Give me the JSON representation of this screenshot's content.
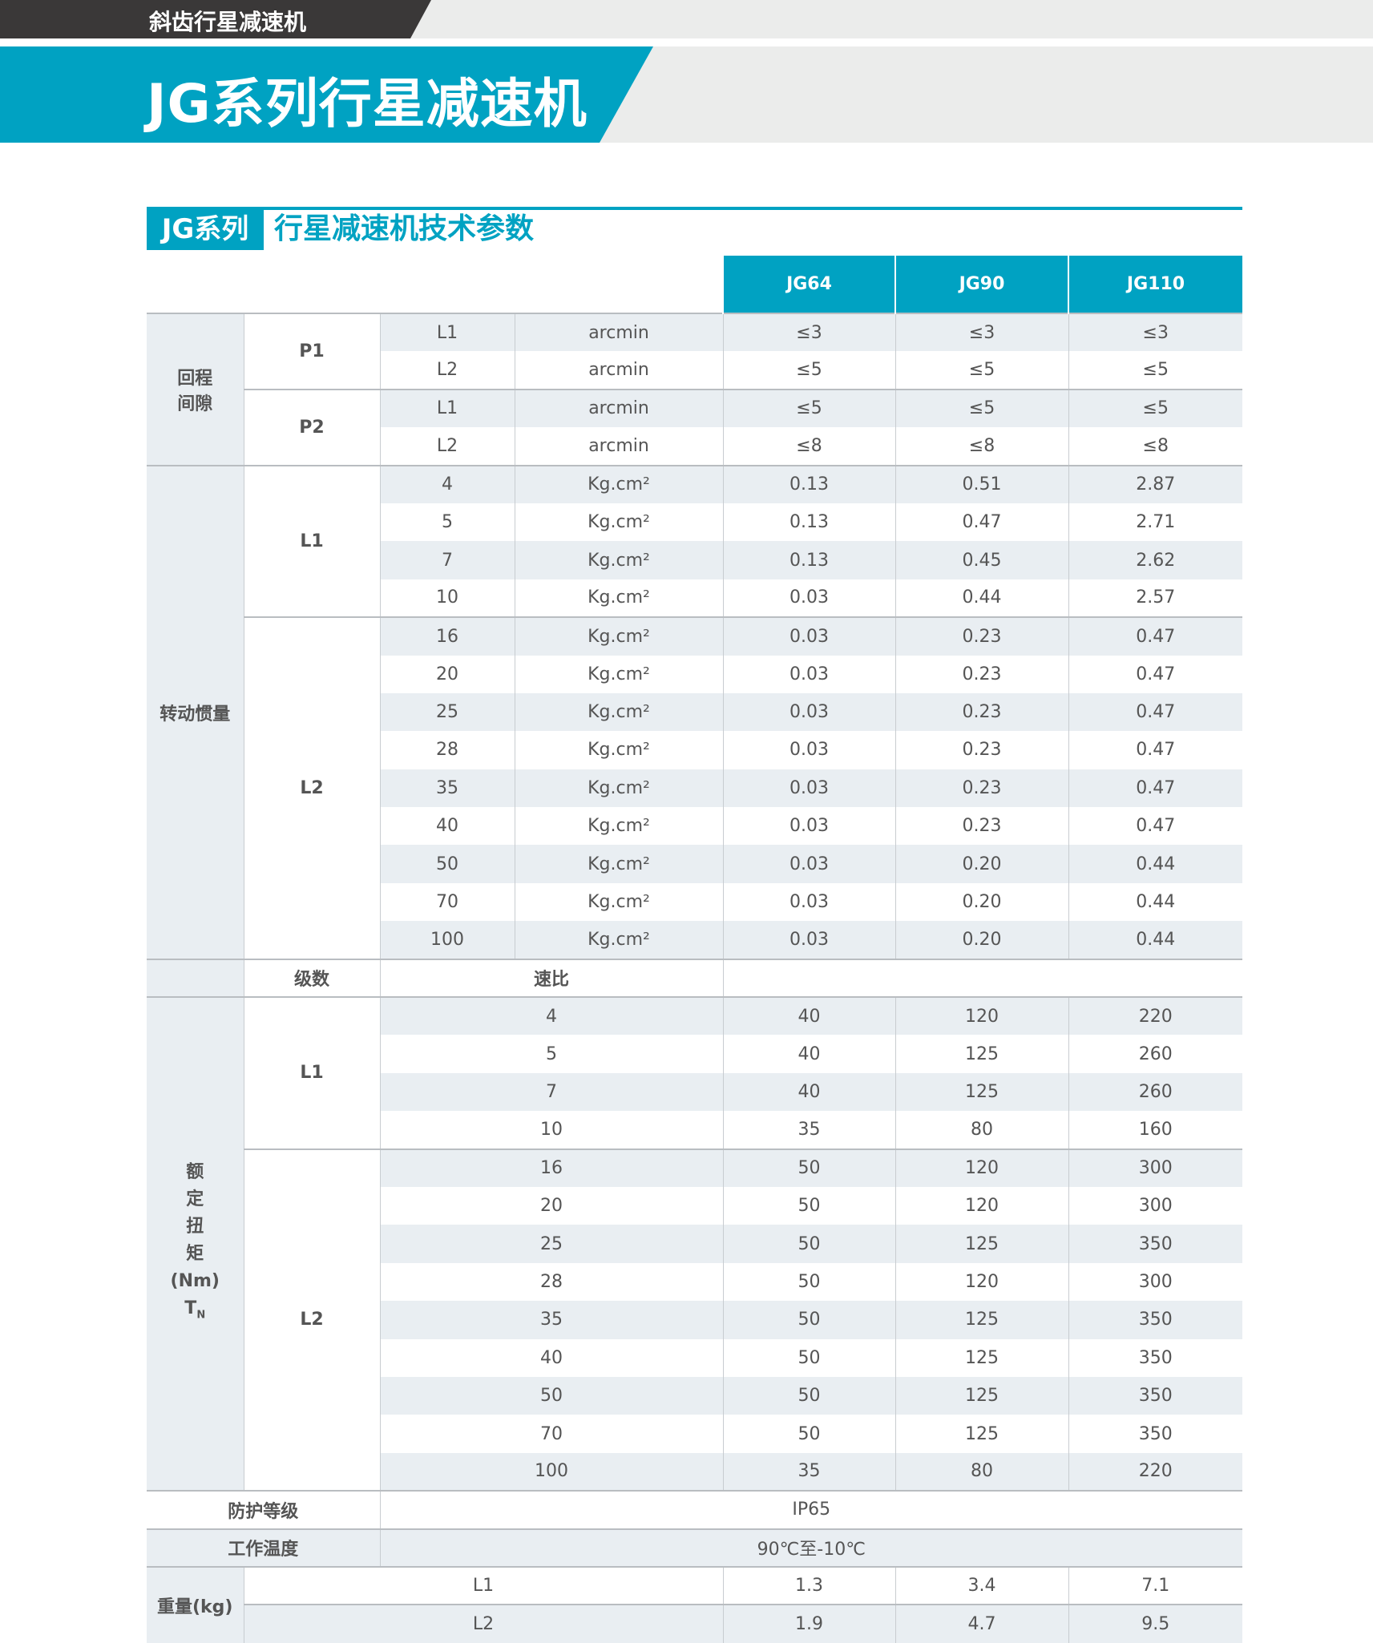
{
  "banner": {
    "category": "斜齿行星减速机",
    "title": "JG系列行星减速机"
  },
  "section": {
    "label": "JG系列",
    "title": "行星减速机技术参数"
  },
  "colors": {
    "accent": "#00a2c2",
    "dark": "#3a3838",
    "stripe": "#e9eef2"
  },
  "table": {
    "models": [
      "JG64",
      "JG90",
      "JG110"
    ],
    "backlash": {
      "label_lines": [
        "回程",
        "间隙"
      ],
      "groups": [
        {
          "name": "P1",
          "rows": [
            {
              "stage": "L1",
              "unit": "arcmin",
              "values": [
                "≤3",
                "≤3",
                "≤3"
              ]
            },
            {
              "stage": "L2",
              "unit": "arcmin",
              "values": [
                "≤5",
                "≤5",
                "≤5"
              ]
            }
          ]
        },
        {
          "name": "P2",
          "rows": [
            {
              "stage": "L1",
              "unit": "arcmin",
              "values": [
                "≤5",
                "≤5",
                "≤5"
              ]
            },
            {
              "stage": "L2",
              "unit": "arcmin",
              "values": [
                "≤8",
                "≤8",
                "≤8"
              ]
            }
          ]
        }
      ]
    },
    "inertia": {
      "label": "转动惯量",
      "groups": [
        {
          "name": "L1",
          "rows": [
            {
              "ratio": "4",
              "unit": "Kg.cm²",
              "values": [
                "0.13",
                "0.51",
                "2.87"
              ]
            },
            {
              "ratio": "5",
              "unit": "Kg.cm²",
              "values": [
                "0.13",
                "0.47",
                "2.71"
              ]
            },
            {
              "ratio": "7",
              "unit": "Kg.cm²",
              "values": [
                "0.13",
                "0.45",
                "2.62"
              ]
            },
            {
              "ratio": "10",
              "unit": "Kg.cm²",
              "values": [
                "0.03",
                "0.44",
                "2.57"
              ]
            }
          ]
        },
        {
          "name": "L2",
          "rows": [
            {
              "ratio": "16",
              "unit": "Kg.cm²",
              "values": [
                "0.03",
                "0.23",
                "0.47"
              ]
            },
            {
              "ratio": "20",
              "unit": "Kg.cm²",
              "values": [
                "0.03",
                "0.23",
                "0.47"
              ]
            },
            {
              "ratio": "25",
              "unit": "Kg.cm²",
              "values": [
                "0.03",
                "0.23",
                "0.47"
              ]
            },
            {
              "ratio": "28",
              "unit": "Kg.cm²",
              "values": [
                "0.03",
                "0.23",
                "0.47"
              ]
            },
            {
              "ratio": "35",
              "unit": "Kg.cm²",
              "values": [
                "0.03",
                "0.23",
                "0.47"
              ]
            },
            {
              "ratio": "40",
              "unit": "Kg.cm²",
              "values": [
                "0.03",
                "0.23",
                "0.47"
              ]
            },
            {
              "ratio": "50",
              "unit": "Kg.cm²",
              "values": [
                "0.03",
                "0.20",
                "0.44"
              ]
            },
            {
              "ratio": "70",
              "unit": "Kg.cm²",
              "values": [
                "0.03",
                "0.20",
                "0.44"
              ]
            },
            {
              "ratio": "100",
              "unit": "Kg.cm²",
              "values": [
                "0.03",
                "0.20",
                "0.44"
              ]
            }
          ]
        }
      ]
    },
    "torque_header": {
      "stage": "级数",
      "ratio": "速比"
    },
    "torque": {
      "label_lines": [
        "额",
        "定",
        "扭",
        "矩",
        "(Nm)"
      ],
      "symbol": "T",
      "symbol_sub": "N",
      "groups": [
        {
          "name": "L1",
          "rows": [
            {
              "ratio": "4",
              "values": [
                "40",
                "120",
                "220"
              ]
            },
            {
              "ratio": "5",
              "values": [
                "40",
                "125",
                "260"
              ]
            },
            {
              "ratio": "7",
              "values": [
                "40",
                "125",
                "260"
              ]
            },
            {
              "ratio": "10",
              "values": [
                "35",
                "80",
                "160"
              ]
            }
          ]
        },
        {
          "name": "L2",
          "rows": [
            {
              "ratio": "16",
              "values": [
                "50",
                "120",
                "300"
              ]
            },
            {
              "ratio": "20",
              "values": [
                "50",
                "120",
                "300"
              ]
            },
            {
              "ratio": "25",
              "values": [
                "50",
                "125",
                "350"
              ]
            },
            {
              "ratio": "28",
              "values": [
                "50",
                "120",
                "300"
              ]
            },
            {
              "ratio": "35",
              "values": [
                "50",
                "125",
                "350"
              ]
            },
            {
              "ratio": "40",
              "values": [
                "50",
                "125",
                "350"
              ]
            },
            {
              "ratio": "50",
              "values": [
                "50",
                "125",
                "350"
              ]
            },
            {
              "ratio": "70",
              "values": [
                "50",
                "125",
                "350"
              ]
            },
            {
              "ratio": "100",
              "values": [
                "35",
                "80",
                "220"
              ]
            }
          ]
        }
      ]
    },
    "protection": {
      "label": "防护等级",
      "value": "IP65"
    },
    "temperature": {
      "label": "工作温度",
      "value": "90℃至-10℃"
    },
    "weight": {
      "label": "重量(kg)",
      "rows": [
        {
          "stage": "L1",
          "values": [
            "1.3",
            "3.4",
            "7.1"
          ]
        },
        {
          "stage": "L2",
          "values": [
            "1.9",
            "4.7",
            "9.5"
          ]
        }
      ]
    }
  }
}
